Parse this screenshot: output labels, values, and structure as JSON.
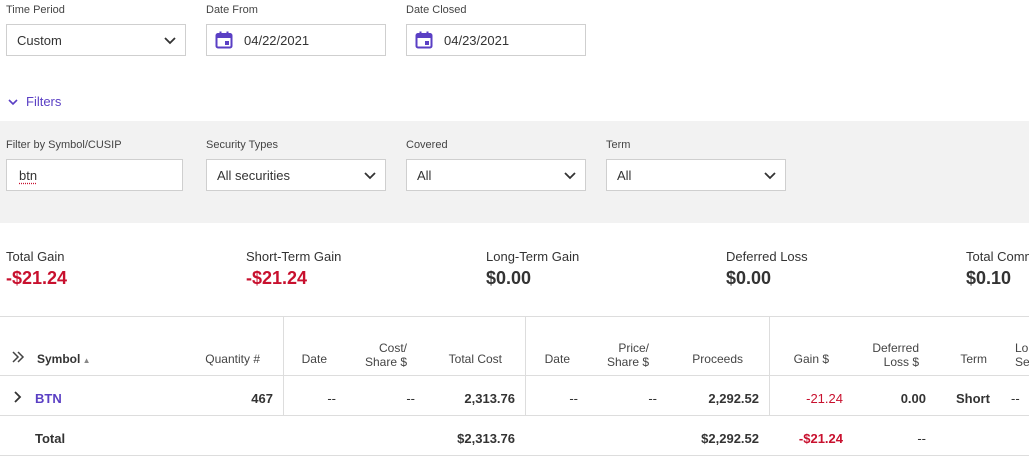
{
  "top_fields": {
    "time_period": {
      "label": "Time Period",
      "value": "Custom"
    },
    "date_from": {
      "label": "Date From",
      "value": "04/22/2021"
    },
    "date_closed": {
      "label": "Date Closed",
      "value": "04/23/2021"
    }
  },
  "filters_toggle": "Filters",
  "filters": {
    "symbol": {
      "label": "Filter by Symbol/CUSIP",
      "value": "btn"
    },
    "security_types": {
      "label": "Security Types",
      "value": "All securities"
    },
    "covered": {
      "label": "Covered",
      "value": "All"
    },
    "term": {
      "label": "Term",
      "value": "All"
    }
  },
  "summary": [
    {
      "label": "Total Gain",
      "value": "-$21.24"
    },
    {
      "label": "Short-Term Gain",
      "value": "-$21.24"
    },
    {
      "label": "Long-Term Gain",
      "value": "$0.00"
    },
    {
      "label": "Deferred Loss",
      "value": "$0.00"
    },
    {
      "label": "Total Comm",
      "value": "$0.10"
    }
  ],
  "table": {
    "headers": {
      "symbol": "Symbol",
      "quantity": "Quantity #",
      "date_open": "Date",
      "cost_share_1": "Cost/",
      "cost_share_2": "Share $",
      "total_cost": "Total Cost",
      "date_close": "Date",
      "price_share_1": "Price/",
      "price_share_2": "Share $",
      "proceeds": "Proceeds",
      "gain": "Gain $",
      "deferred_1": "Deferred",
      "deferred_2": "Loss $",
      "term": "Term",
      "lo_1": "Lo",
      "lo_2": "Se"
    },
    "row": {
      "symbol": "BTN",
      "quantity": "467",
      "date_open": "--",
      "cost_share": "--",
      "total_cost": "2,313.76",
      "date_close": "--",
      "price_share": "--",
      "proceeds": "2,292.52",
      "gain": "-21.24",
      "deferred": "0.00",
      "term": "Short",
      "lo": "--"
    },
    "total": {
      "label": "Total",
      "total_cost": "$2,313.76",
      "proceeds": "$2,292.52",
      "gain": "-$21.24",
      "deferred": "--"
    }
  },
  "colors": {
    "accent": "#5a3fc4",
    "negative": "#c8102e",
    "panel": "#f2f2f2"
  }
}
